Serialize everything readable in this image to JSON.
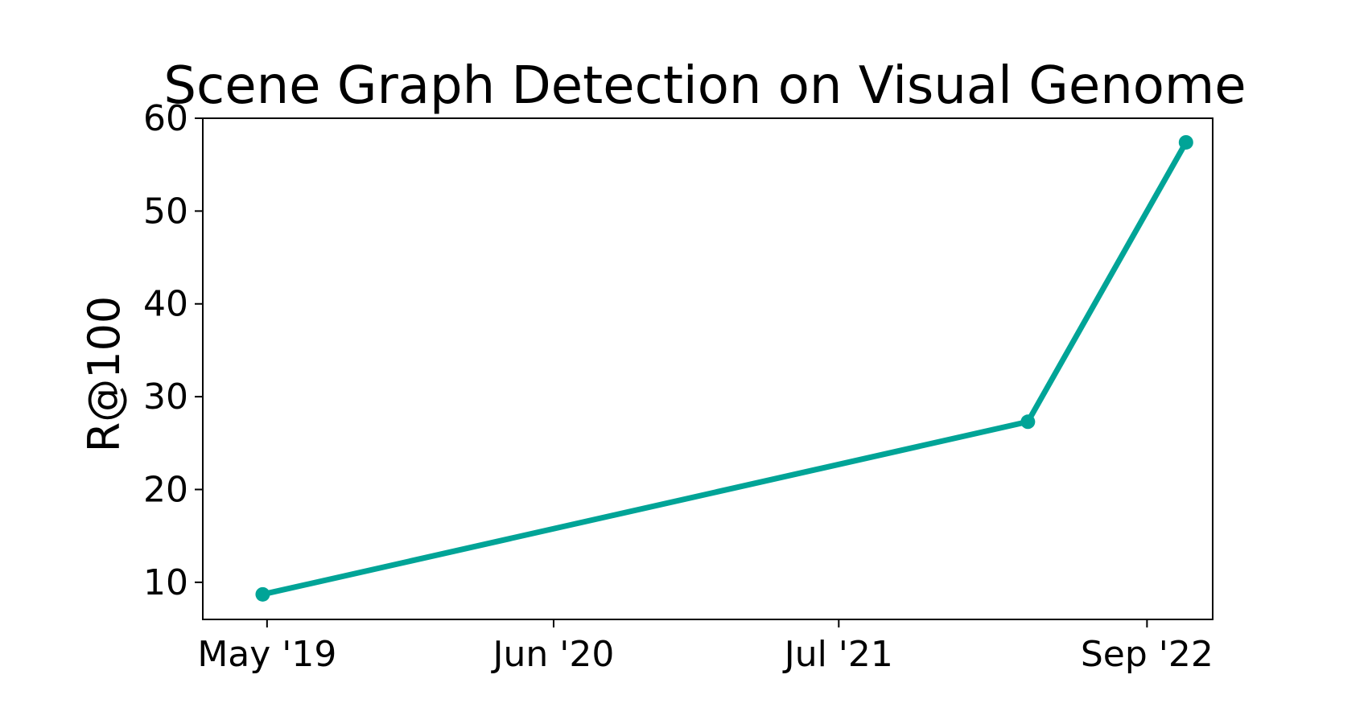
{
  "chart_data": {
    "type": "line",
    "title": "Scene Graph Detection on Visual Genome",
    "xlabel": "",
    "ylabel": "R@100",
    "x_ticks": [
      {
        "date": "2019-05-01",
        "label": "May '19"
      },
      {
        "date": "2020-06-01",
        "label": "Jun '20"
      },
      {
        "date": "2021-07-01",
        "label": "Jul '21"
      },
      {
        "date": "2022-09-01",
        "label": "Sep '22"
      }
    ],
    "y_ticks": [
      10,
      20,
      30,
      40,
      50,
      60
    ],
    "xlim": [
      "2019-02-01",
      "2022-12-01"
    ],
    "ylim": [
      6,
      60
    ],
    "grid": false,
    "series": [
      {
        "color": "#00a497",
        "points": [
          {
            "x": "2019-04-25",
            "y": 8.7
          },
          {
            "x": "2022-03-20",
            "y": 27.3
          },
          {
            "x": "2022-10-25",
            "y": 57.4
          }
        ]
      }
    ]
  }
}
